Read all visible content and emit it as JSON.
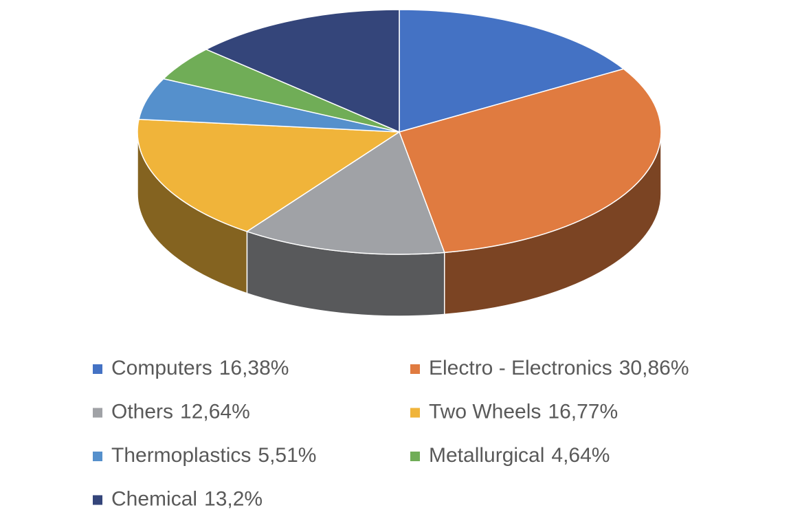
{
  "chart_data": {
    "type": "pie",
    "categories": [
      "Computers",
      "Electro - Electronics",
      "Others",
      "Two Wheels",
      "Thermoplastics",
      "Metallurgical",
      "Chemical"
    ],
    "values": [
      16.38,
      30.86,
      12.64,
      16.77,
      5.51,
      4.64,
      13.2
    ],
    "value_labels": [
      "16,38%",
      "30,86%",
      "12,64%",
      "16,77%",
      "5,51%",
      "4,64%",
      "13,2%"
    ],
    "colors": [
      "#4472c4",
      "#e07b40",
      "#a0a2a6",
      "#f0b43a",
      "#5590cc",
      "#70ad57",
      "#34457a"
    ],
    "legend": "bottom"
  }
}
